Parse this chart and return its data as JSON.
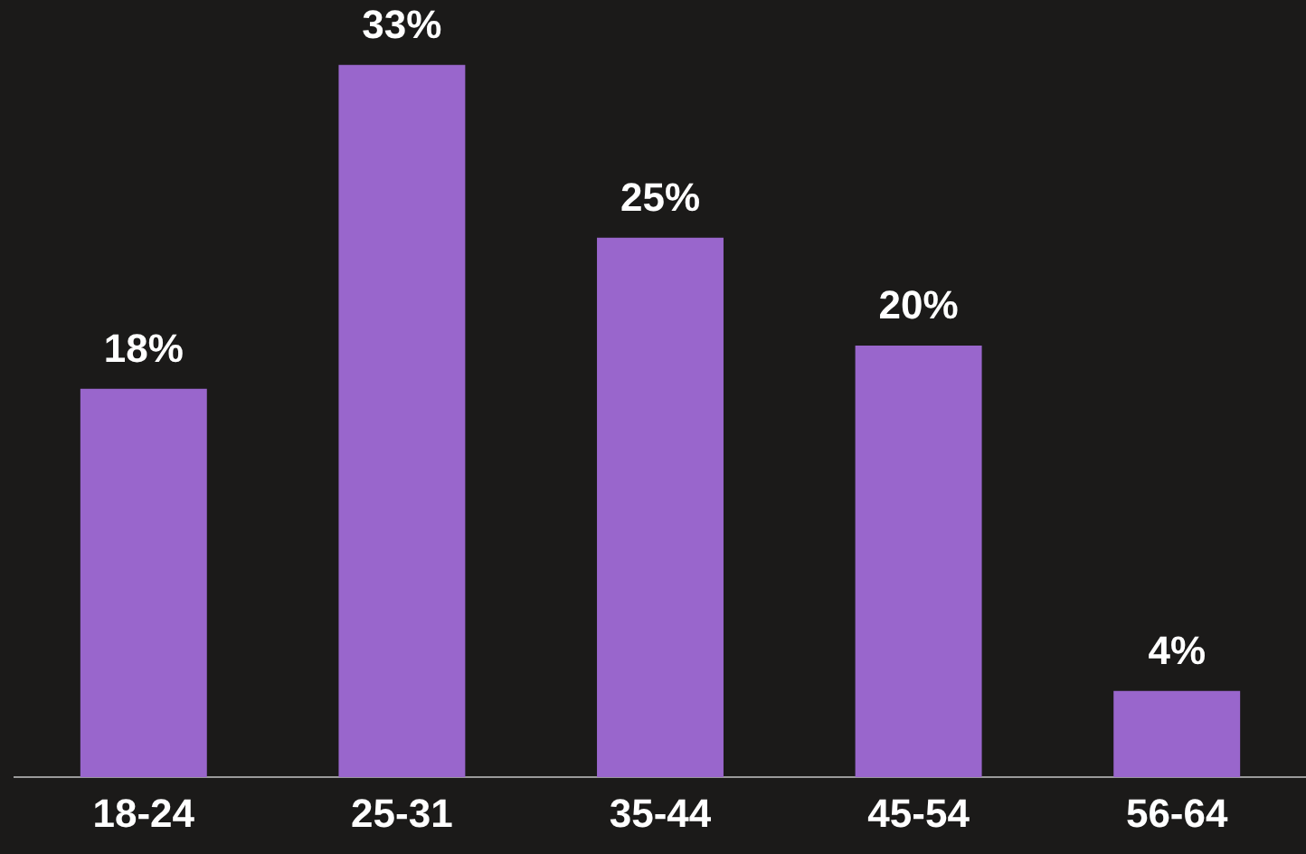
{
  "chart_data": {
    "type": "bar",
    "categories": [
      "18-24",
      "25-31",
      "35-44",
      "45-54",
      "56-64"
    ],
    "values": [
      18,
      33,
      25,
      20,
      4
    ],
    "value_labels": [
      "18%",
      "33%",
      "25%",
      "20%",
      "4%"
    ],
    "color": "#9966cc",
    "grid": false,
    "legend": false,
    "tick_labels": "x"
  }
}
